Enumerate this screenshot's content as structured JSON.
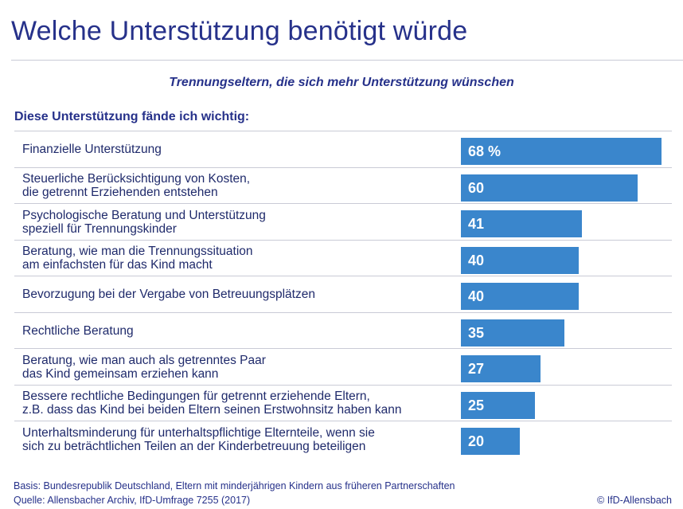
{
  "title": "Welche Unterstützung benötigt würde",
  "subtitle": "Trennungseltern, die sich mehr Unterstützung wünschen",
  "heading": "Diese Unterstützung fände ich wichtig:",
  "footer": {
    "basis": "Basis: Bundesrepublik Deutschland, Eltern mit minderjährigen Kindern aus früheren Partnerschaften",
    "source": "Quelle: Allensbacher Archiv, IfD-Umfrage 7255 (2017)",
    "copyright": "© IfD-Allensbach"
  },
  "colors": {
    "bar": "#3a86cc",
    "text": "#26318a"
  },
  "chart_data": {
    "type": "bar",
    "orientation": "horizontal",
    "title": "Welche Unterstützung benötigt würde",
    "subtitle": "Trennungseltern, die sich mehr Unterstützung wünschen",
    "unit": "%",
    "xlim": [
      0,
      68
    ],
    "categories": [
      "Finanzielle Unterstützung",
      "Steuerliche Berücksichtigung von Kosten,\ndie getrennt Erziehenden entstehen",
      "Psychologische Beratung und Unterstützung\nspeziell für Trennungskinder",
      "Beratung, wie man die Trennungssituation\nam einfachsten für das Kind macht",
      "Bevorzugung bei der Vergabe von Betreuungsplätzen",
      "Rechtliche Beratung",
      "Beratung, wie man auch als getrenntes Paar\ndas Kind gemeinsam erziehen kann",
      "Bessere rechtliche Bedingungen für getrennt erziehende Eltern,\nz.B. dass das Kind bei beiden Eltern seinen Erstwohnsitz haben kann",
      "Unterhaltsminderung für unterhaltspflichtige Elternteile, wenn sie\nsich zu beträchtlichen Teilen an der Kinderbetreuung beteiligen"
    ],
    "values": [
      68,
      60,
      41,
      40,
      40,
      35,
      27,
      25,
      20
    ],
    "labels": [
      "68 %",
      "60",
      "41",
      "40",
      "40",
      "35",
      "27",
      "25",
      "20"
    ]
  }
}
